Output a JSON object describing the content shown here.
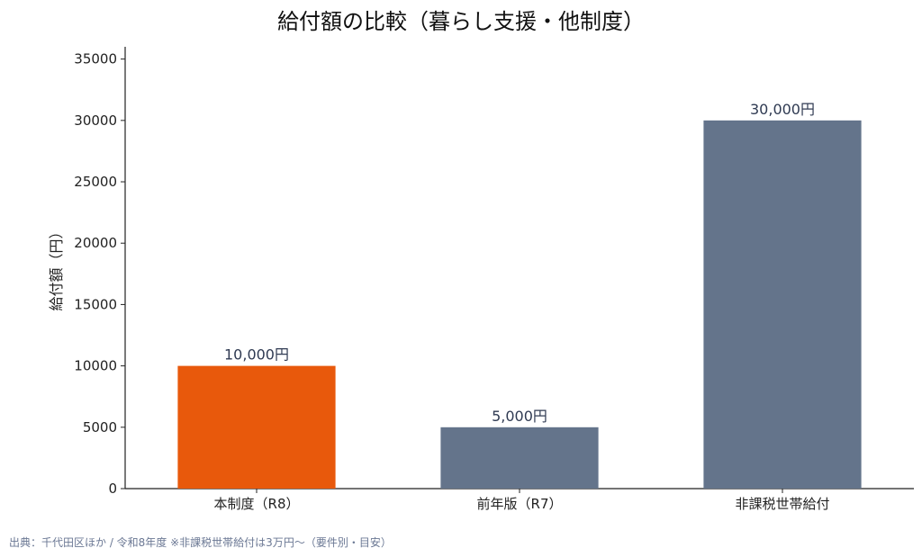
{
  "chart_data": {
    "type": "bar",
    "title": "給付額の比較（暮らし支援・他制度）",
    "ylabel": "給付額（円）",
    "xlabel": "",
    "categories": [
      "本制度（R8）",
      "前年版（R7）",
      "非課税世帯給付"
    ],
    "values": [
      10000,
      5000,
      30000
    ],
    "value_labels": [
      "10,000円",
      "5,000円",
      "30,000円"
    ],
    "bar_colors": [
      "#e8590c",
      "#64748b",
      "#64748b"
    ],
    "ylim": [
      0,
      36000
    ],
    "yticks": [
      0,
      5000,
      10000,
      15000,
      20000,
      25000,
      30000,
      35000
    ],
    "grid": false,
    "legend": "none"
  },
  "source_note": "出典：千代田区ほか / 令和8年度 ※非課税世帯給付は3万円〜（要件別・目安）"
}
